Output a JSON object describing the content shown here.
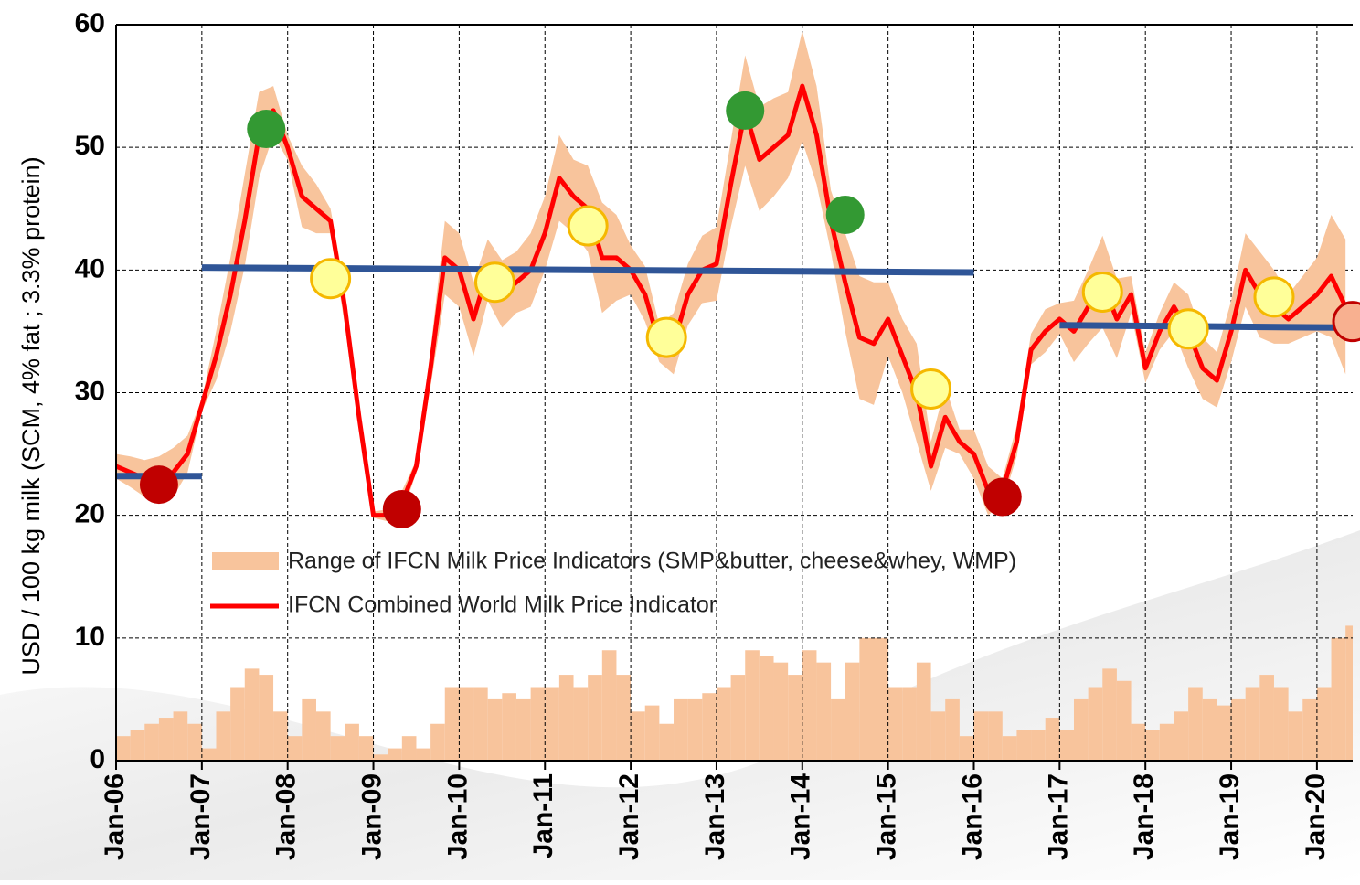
{
  "chart_data": {
    "type": "line",
    "y_label": "USD / 100 kg milk (SCM, 4% fat ; 3.3% protein)",
    "x": [
      "2006-01",
      "2006-03",
      "2006-05",
      "2006-07",
      "2006-09",
      "2006-11",
      "2007-01",
      "2007-03",
      "2007-05",
      "2007-07",
      "2007-09",
      "2007-11",
      "2008-01",
      "2008-03",
      "2008-05",
      "2008-07",
      "2008-09",
      "2008-11",
      "2009-01",
      "2009-03",
      "2009-05",
      "2009-07",
      "2009-09",
      "2009-11",
      "2010-01",
      "2010-03",
      "2010-05",
      "2010-07",
      "2010-09",
      "2010-11",
      "2011-01",
      "2011-03",
      "2011-05",
      "2011-07",
      "2011-09",
      "2011-11",
      "2012-01",
      "2012-03",
      "2012-05",
      "2012-07",
      "2012-09",
      "2012-11",
      "2013-01",
      "2013-03",
      "2013-05",
      "2013-07",
      "2013-09",
      "2013-11",
      "2014-01",
      "2014-03",
      "2014-05",
      "2014-07",
      "2014-09",
      "2014-11",
      "2015-01",
      "2015-03",
      "2015-05",
      "2015-07",
      "2015-09",
      "2015-11",
      "2016-01",
      "2016-03",
      "2016-05",
      "2016-07",
      "2016-09",
      "2016-11",
      "2017-01",
      "2017-03",
      "2017-05",
      "2017-07",
      "2017-09",
      "2017-11",
      "2018-01",
      "2018-03",
      "2018-05",
      "2018-07",
      "2018-09",
      "2018-11",
      "2019-01",
      "2019-03",
      "2019-05",
      "2019-07",
      "2019-09",
      "2019-11",
      "2020-01",
      "2020-03",
      "2020-05"
    ],
    "series": [
      {
        "name": "IFCN Combined World Milk Price Indicator",
        "color": "#ff0000",
        "values": [
          24,
          23.5,
          23,
          23,
          23.5,
          25,
          29,
          33,
          38,
          44,
          51,
          53,
          50,
          46,
          45,
          44,
          37,
          28,
          20,
          20,
          21,
          24,
          32,
          41,
          40,
          36,
          40,
          38,
          39,
          40,
          43,
          47.5,
          46,
          45,
          41,
          41,
          40,
          38,
          34,
          34,
          38,
          40,
          40.5,
          47,
          53,
          49,
          50,
          51,
          55,
          51,
          44,
          39,
          34.5,
          34,
          36,
          33,
          30,
          24,
          28,
          26,
          25,
          22,
          22,
          26,
          33.5,
          35,
          36,
          35,
          37,
          39,
          36,
          38,
          32,
          35,
          37,
          35,
          32,
          31,
          35,
          40,
          38,
          37,
          36,
          37,
          38,
          39.5,
          37
        ]
      },
      {
        "name": "Range of IFCN Milk Price Indicators (SMP&butter, cheese&whey, WMP)",
        "color": "#f8c49c",
        "low": [
          23,
          22.3,
          21.5,
          21.3,
          21.5,
          23.5,
          28.5,
          31,
          35,
          40.3,
          47.5,
          51,
          49,
          43.5,
          43,
          43,
          35.5,
          27,
          19.8,
          19.5,
          20,
          23.5,
          30.5,
          38,
          37,
          33,
          37.5,
          35.3,
          36.5,
          37,
          40,
          44,
          43,
          41.5,
          36.5,
          37.5,
          38,
          35.8,
          32.5,
          31.5,
          35.5,
          37.3,
          37.5,
          43.5,
          48.5,
          44.8,
          46,
          47.5,
          50.5,
          47,
          41.5,
          35,
          29.5,
          29,
          33,
          30,
          26,
          22,
          25.5,
          25,
          23,
          20,
          21,
          24.8,
          32.3,
          33.3,
          34.8,
          32.5,
          34,
          35.3,
          32.8,
          36.5,
          30.8,
          33.5,
          35,
          32,
          29.5,
          28.8,
          32.5,
          37,
          34.5,
          34,
          34,
          34.5,
          35,
          34.5,
          31.5
        ],
        "high": [
          25,
          24.8,
          24.5,
          24.8,
          25.5,
          26.5,
          29.5,
          35,
          41,
          47.8,
          54.5,
          55,
          51,
          48.5,
          47,
          45,
          38.5,
          29,
          20.3,
          20.5,
          22,
          24.5,
          33.5,
          44,
          43,
          39,
          42.5,
          40.8,
          41.5,
          43,
          46,
          51,
          49,
          48.5,
          45.5,
          44.5,
          42,
          40.3,
          35.5,
          36.5,
          40.5,
          42.8,
          43.5,
          50.5,
          57.5,
          53.3,
          54,
          54.5,
          59.5,
          55,
          46.5,
          43,
          39.5,
          39,
          39,
          36,
          34,
          26,
          30.5,
          27,
          27,
          24,
          23,
          27.3,
          34.8,
          36.8,
          37.3,
          37.5,
          40,
          42.8,
          39.3,
          39.5,
          33.3,
          36.5,
          39,
          38,
          34.5,
          33.3,
          37.5,
          43,
          41.5,
          40,
          38,
          39.5,
          41,
          44.5,
          42.5
        ],
        "spread": [
          2,
          2.5,
          3,
          3.5,
          4,
          3,
          1,
          4,
          6,
          7.5,
          7,
          4,
          2,
          5,
          4,
          2,
          3,
          2,
          0.5,
          1,
          2,
          1,
          3,
          6,
          6,
          6,
          5,
          5.5,
          5,
          6,
          6,
          7,
          6,
          7,
          9,
          7,
          4,
          4.5,
          3,
          5,
          5,
          5.5,
          6,
          7,
          9,
          8.5,
          8,
          7,
          9,
          8,
          5,
          8,
          10,
          10,
          6,
          6,
          8,
          4,
          5,
          2,
          4,
          4,
          2,
          2.5,
          2.5,
          3.5,
          2.5,
          5,
          6,
          7.5,
          6.5,
          3,
          2.5,
          3,
          4,
          6,
          5,
          4.5,
          5,
          6,
          7,
          6,
          4,
          5,
          6,
          10,
          11
        ]
      }
    ],
    "markers": [
      {
        "x": "2006-07",
        "y": 22.5,
        "color": "#c00000"
      },
      {
        "x": "2009-05",
        "y": 20.5,
        "color": "#c00000"
      },
      {
        "x": "2016-05",
        "y": 21.5,
        "color": "#c00000"
      },
      {
        "x": "2007-10",
        "y": 51.5,
        "color": "#339933"
      },
      {
        "x": "2013-05",
        "y": 53,
        "color": "#339933"
      },
      {
        "x": "2014-07",
        "y": 44.5,
        "color": "#339933"
      },
      {
        "x": "2008-07",
        "y": 39.3,
        "color": "#ffff99"
      },
      {
        "x": "2010-06",
        "y": 39,
        "color": "#ffff99"
      },
      {
        "x": "2011-07",
        "y": 43.6,
        "color": "#ffff99"
      },
      {
        "x": "2012-06",
        "y": 34.5,
        "color": "#ffff99"
      },
      {
        "x": "2015-07",
        "y": 30.3,
        "color": "#ffff99"
      },
      {
        "x": "2017-07",
        "y": 38.2,
        "color": "#ffff99"
      },
      {
        "x": "2018-07",
        "y": 35.2,
        "color": "#ffff99"
      },
      {
        "x": "2019-07",
        "y": 37.8,
        "color": "#ffff99"
      },
      {
        "x": "2020-06",
        "y": 35.8,
        "color": "#f8b090"
      }
    ],
    "reference_lines": [
      {
        "x": [
          "2006-01",
          "2007-01"
        ],
        "y": [
          23.2,
          23.2
        ],
        "color": "#2f5597"
      },
      {
        "x": [
          "2007-01",
          "2016-01"
        ],
        "y": [
          40.2,
          39.8
        ],
        "color": "#2f5597"
      },
      {
        "x": [
          "2017-01",
          "2020-06"
        ],
        "y": [
          35.5,
          35.3
        ],
        "color": "#2f5597"
      }
    ],
    "xlim": [
      "2006-01",
      "2020-06"
    ],
    "xticks": [
      {
        "value": "2006-01",
        "label": "Jan-06"
      },
      {
        "value": "2007-01",
        "label": "Jan-07"
      },
      {
        "value": "2008-01",
        "label": "Jan-08"
      },
      {
        "value": "2009-01",
        "label": "Jan-09"
      },
      {
        "value": "2010-01",
        "label": "Jan-10"
      },
      {
        "value": "2011-01",
        "label": "Jan-11"
      },
      {
        "value": "2012-01",
        "label": "Jan-12"
      },
      {
        "value": "2013-01",
        "label": "Jan-13"
      },
      {
        "value": "2014-01",
        "label": "Jan-14"
      },
      {
        "value": "2015-01",
        "label": "Jan-15"
      },
      {
        "value": "2016-01",
        "label": "Jan-16"
      },
      {
        "value": "2017-01",
        "label": "Jan-17"
      },
      {
        "value": "2018-01",
        "label": "Jan-18"
      },
      {
        "value": "2019-01",
        "label": "Jan-19"
      },
      {
        "value": "2020-01",
        "label": "Jan-20"
      }
    ],
    "ylim": [
      0,
      60
    ],
    "yticks": [
      0,
      10,
      20,
      30,
      40,
      50,
      60
    ],
    "grid": true
  }
}
